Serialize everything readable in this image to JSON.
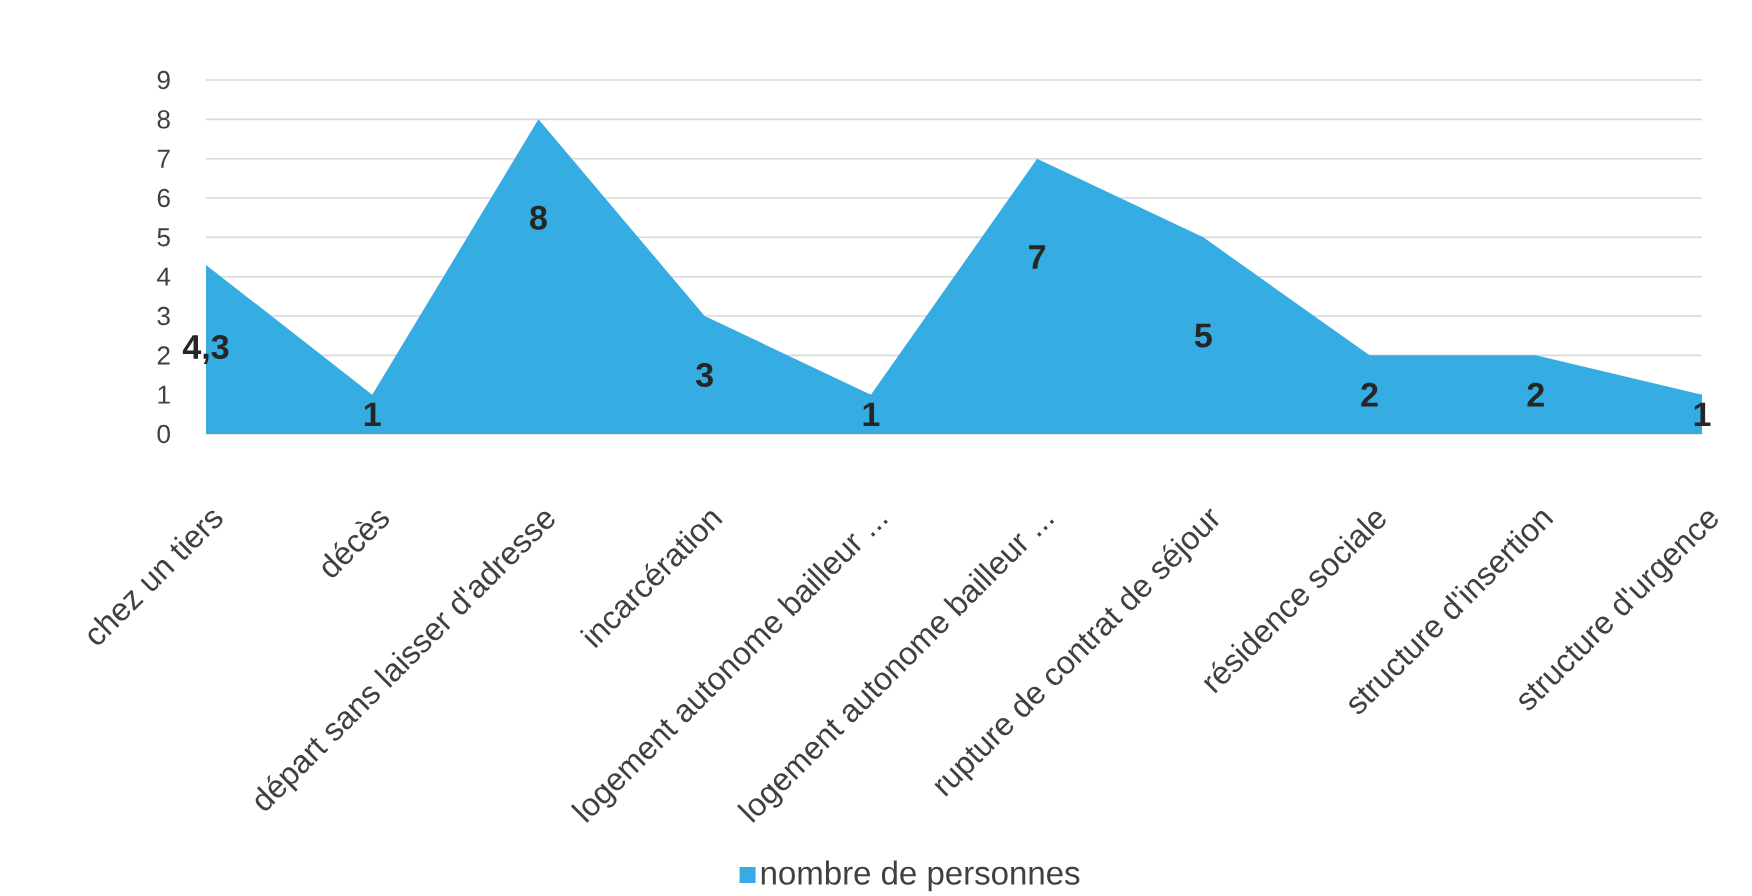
{
  "chart_data": {
    "type": "area",
    "categories": [
      "chez un tiers",
      "décès",
      "départ sans laisser d'adresse",
      "incarcération",
      "logement autonome bailleur ...",
      "logement autonome bailleur ...",
      "rupture de contrat de séjour",
      "résidence sociale",
      "structure d'insertion",
      "structure d'urgence"
    ],
    "series": [
      {
        "name": "nombre de personnes",
        "color": "#35ade3",
        "values": [
          4.3,
          1,
          8,
          3,
          1,
          7,
          5,
          2,
          2,
          1
        ],
        "value_labels": [
          "4,3",
          "1",
          "8",
          "3",
          "1",
          "7",
          "5",
          "2",
          "2",
          "1"
        ]
      }
    ],
    "ylim": [
      0,
      9
    ],
    "yticks": [
      0,
      1,
      2,
      3,
      4,
      5,
      6,
      7,
      8,
      9
    ],
    "grid": "y",
    "legend": "bottom"
  }
}
